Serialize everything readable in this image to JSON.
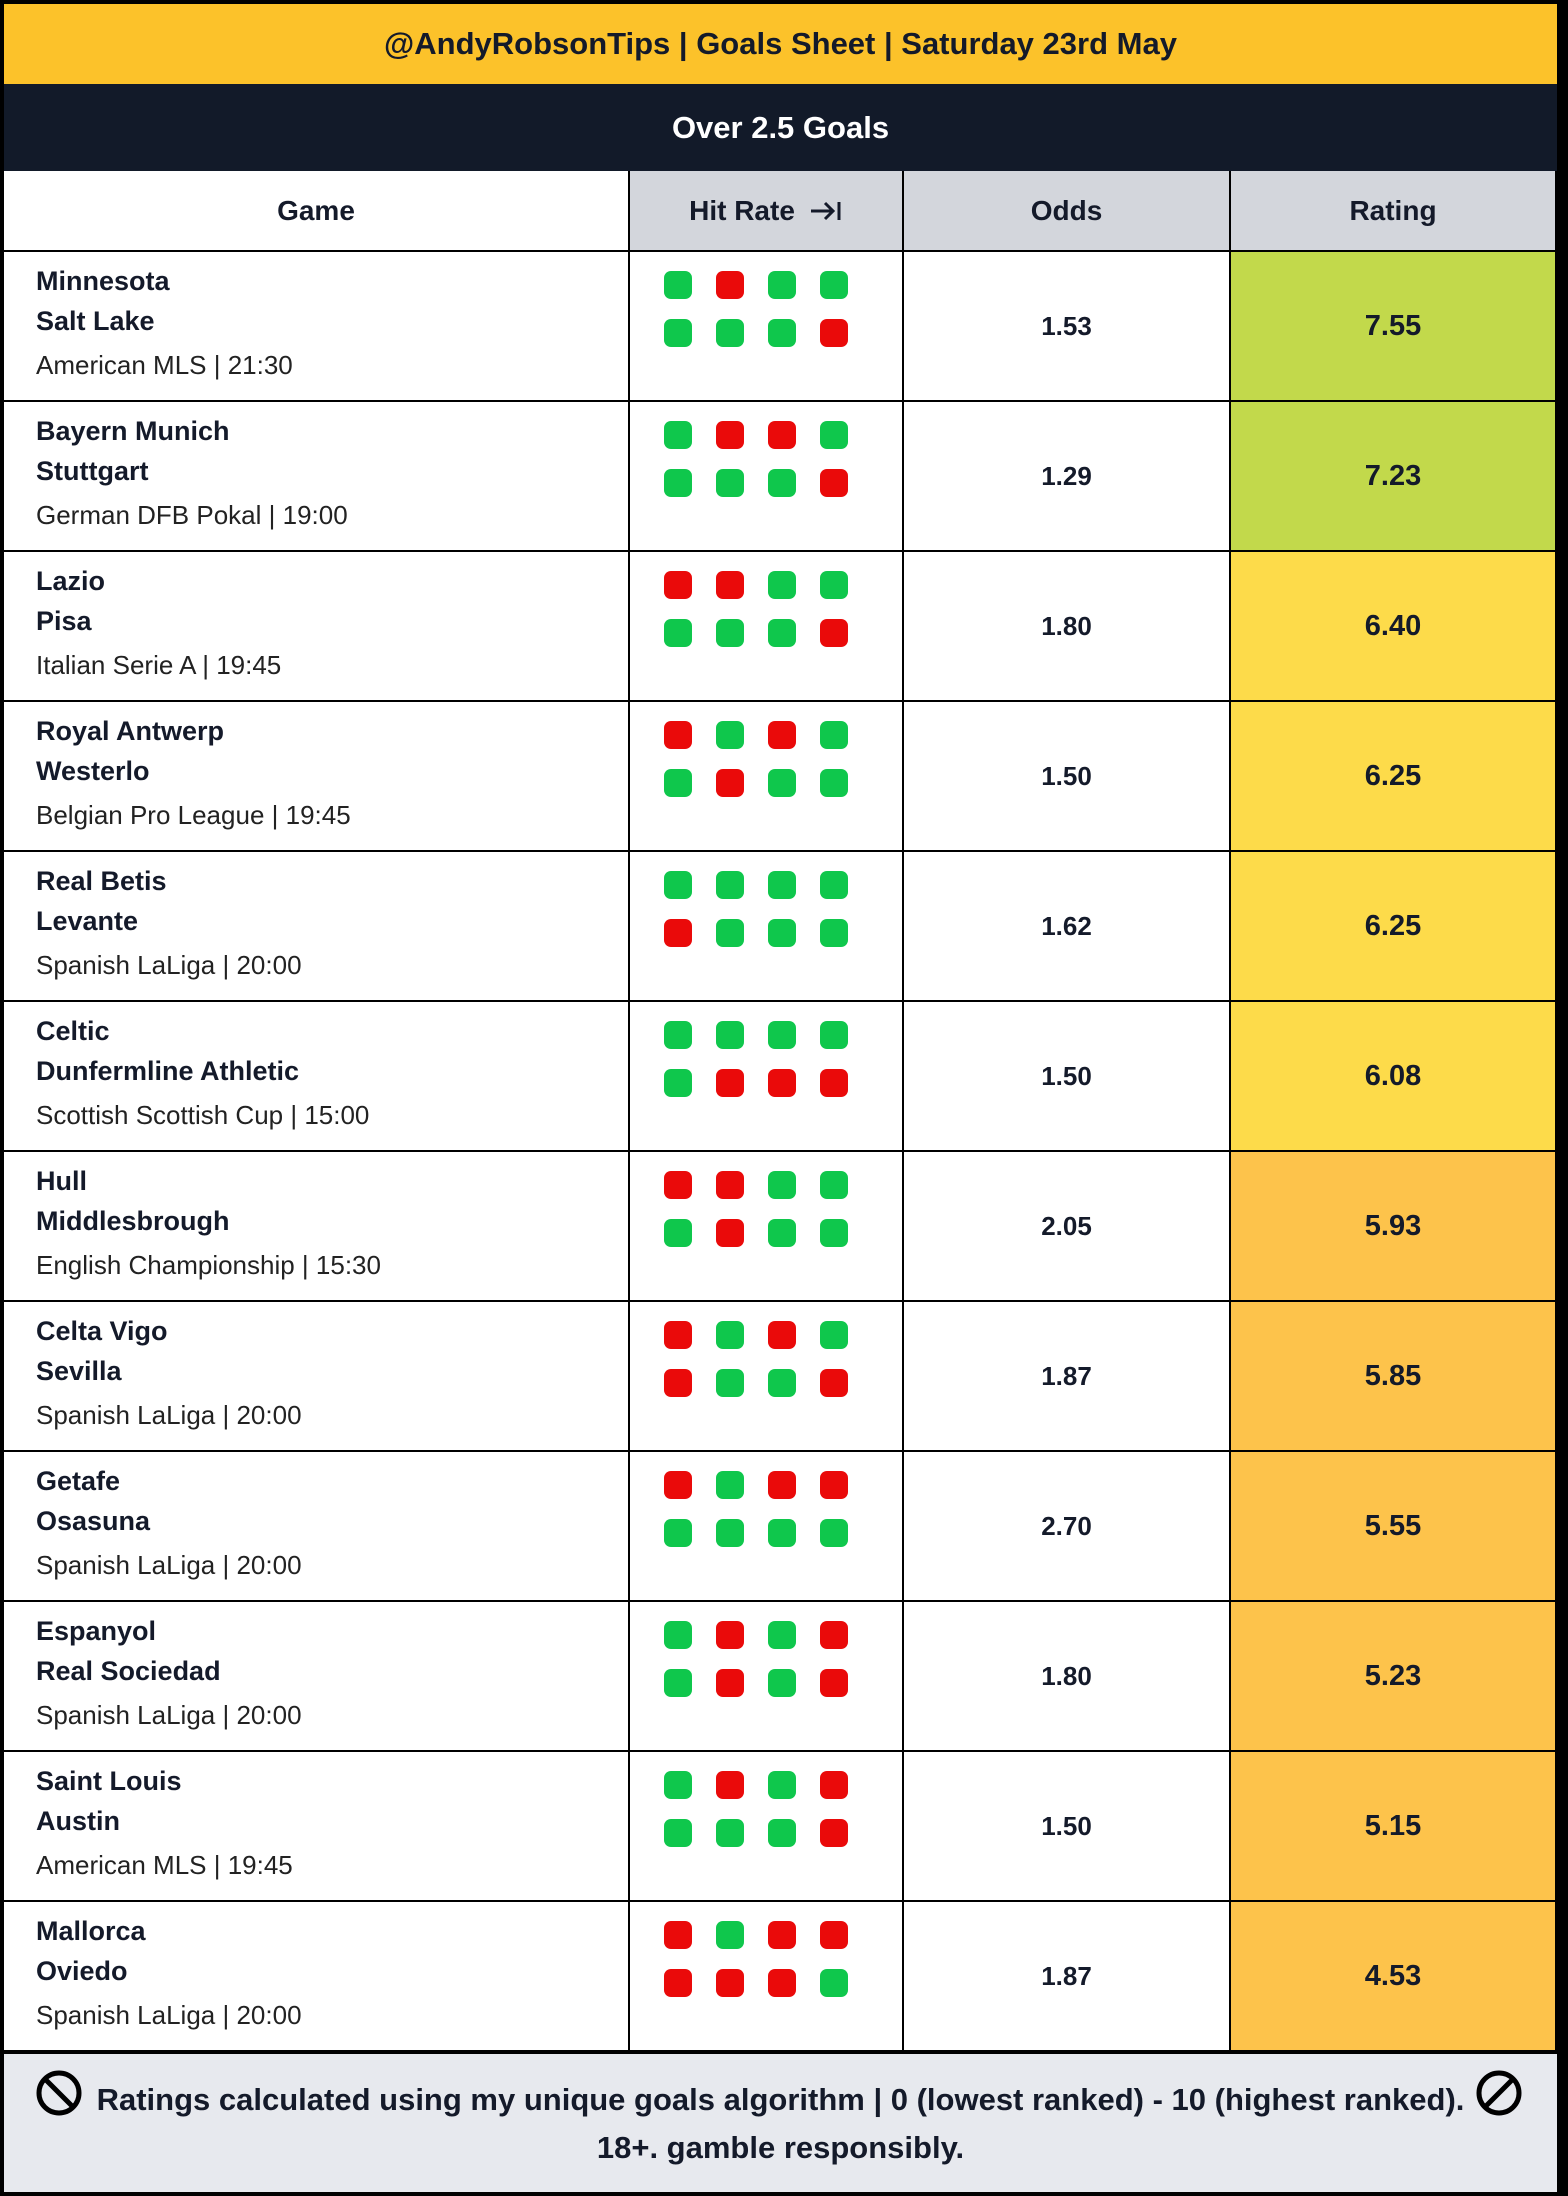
{
  "header": {
    "title": "@AndyRobsonTips | Goals Sheet | Saturday 23rd May",
    "subtitle": "Over 2.5 Goals"
  },
  "table": {
    "columns": [
      "Game",
      "Hit Rate",
      "Odds",
      "Rating"
    ],
    "colors": {
      "hit": "#0fc74c",
      "miss": "#ea0a0a"
    },
    "rows": [
      {
        "home": "Minnesota",
        "away": "Salt Lake",
        "info": "American MLS | 21:30",
        "hit": [
          [
            1,
            0,
            1,
            1
          ],
          [
            1,
            1,
            1,
            0
          ]
        ],
        "odds": "1.53",
        "rating": "7.55",
        "rating_color": "#c2d94b"
      },
      {
        "home": "Bayern Munich",
        "away": "Stuttgart",
        "info": "German DFB Pokal | 19:00",
        "hit": [
          [
            1,
            0,
            0,
            1
          ],
          [
            1,
            1,
            1,
            0
          ]
        ],
        "odds": "1.29",
        "rating": "7.23",
        "rating_color": "#c2d94b"
      },
      {
        "home": "Lazio",
        "away": "Pisa",
        "info": "Italian Serie A | 19:45",
        "hit": [
          [
            0,
            0,
            1,
            1
          ],
          [
            1,
            1,
            1,
            0
          ]
        ],
        "odds": "1.80",
        "rating": "6.40",
        "rating_color": "#fddb4a"
      },
      {
        "home": "Royal Antwerp",
        "away": "Westerlo",
        "info": "Belgian Pro League | 19:45",
        "hit": [
          [
            0,
            1,
            0,
            1
          ],
          [
            1,
            0,
            1,
            1
          ]
        ],
        "odds": "1.50",
        "rating": "6.25",
        "rating_color": "#fddb4a"
      },
      {
        "home": "Real Betis",
        "away": "Levante",
        "info": "Spanish LaLiga | 20:00",
        "hit": [
          [
            1,
            1,
            1,
            1
          ],
          [
            0,
            1,
            1,
            1
          ]
        ],
        "odds": "1.62",
        "rating": "6.25",
        "rating_color": "#fddb4a"
      },
      {
        "home": "Celtic",
        "away": "Dunfermline Athletic",
        "info": "Scottish Scottish Cup | 15:00",
        "hit": [
          [
            1,
            1,
            1,
            1
          ],
          [
            1,
            0,
            0,
            0
          ]
        ],
        "odds": "1.50",
        "rating": "6.08",
        "rating_color": "#fddb4a"
      },
      {
        "home": "Hull",
        "away": "Middlesbrough",
        "info": "English Championship | 15:30",
        "hit": [
          [
            0,
            0,
            1,
            1
          ],
          [
            1,
            0,
            1,
            1
          ]
        ],
        "odds": "2.05",
        "rating": "5.93",
        "rating_color": "#fdc34b"
      },
      {
        "home": "Celta Vigo",
        "away": "Sevilla",
        "info": "Spanish LaLiga | 20:00",
        "hit": [
          [
            0,
            1,
            0,
            1
          ],
          [
            0,
            1,
            1,
            0
          ]
        ],
        "odds": "1.87",
        "rating": "5.85",
        "rating_color": "#fdc34b"
      },
      {
        "home": "Getafe",
        "away": "Osasuna",
        "info": "Spanish LaLiga | 20:00",
        "hit": [
          [
            0,
            1,
            0,
            0
          ],
          [
            1,
            1,
            1,
            1
          ]
        ],
        "odds": "2.70",
        "rating": "5.55",
        "rating_color": "#fdc34b"
      },
      {
        "home": "Espanyol",
        "away": "Real Sociedad",
        "info": "Spanish LaLiga | 20:00",
        "hit": [
          [
            1,
            0,
            1,
            0
          ],
          [
            1,
            0,
            1,
            0
          ]
        ],
        "odds": "1.80",
        "rating": "5.23",
        "rating_color": "#fdc34b"
      },
      {
        "home": "Saint Louis",
        "away": "Austin",
        "info": "American MLS | 19:45",
        "hit": [
          [
            1,
            0,
            1,
            0
          ],
          [
            1,
            1,
            1,
            0
          ]
        ],
        "odds": "1.50",
        "rating": "5.15",
        "rating_color": "#fdc34b"
      },
      {
        "home": "Mallorca",
        "away": "Oviedo",
        "info": "Spanish LaLiga | 20:00",
        "hit": [
          [
            0,
            1,
            0,
            0
          ],
          [
            0,
            0,
            0,
            1
          ]
        ],
        "odds": "1.87",
        "rating": "4.53",
        "rating_color": "#fdc34b"
      }
    ]
  },
  "footer": {
    "text": "Ratings calculated using my unique goals algorithm | 0 (lowest ranked) - 10 (highest ranked). 18+. gamble responsibly."
  }
}
